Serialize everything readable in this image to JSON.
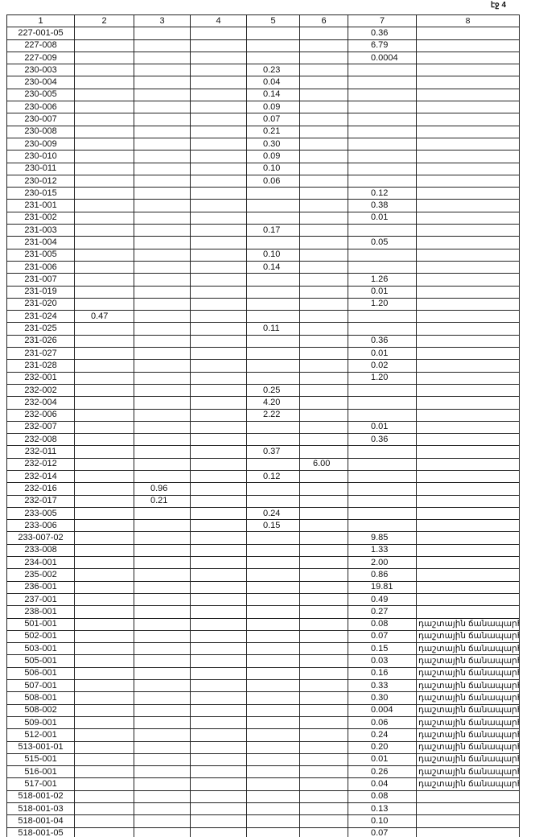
{
  "page_label": "էջ 4",
  "table": {
    "header": [
      "1",
      "2",
      "3",
      "4",
      "5",
      "6",
      "7",
      "8"
    ],
    "rows": [
      {
        "1": "227-001-05",
        "7": "0.36"
      },
      {
        "1": "227-008",
        "7": "6.79"
      },
      {
        "1": "227-009",
        "7": "0.0004"
      },
      {
        "1": "230-003",
        "5": "0.23"
      },
      {
        "1": "230-004",
        "5": "0.04"
      },
      {
        "1": "230-005",
        "5": "0.14"
      },
      {
        "1": "230-006",
        "5": "0.09"
      },
      {
        "1": "230-007",
        "5": "0.07"
      },
      {
        "1": "230-008",
        "5": "0.21"
      },
      {
        "1": "230-009",
        "5": "0.30"
      },
      {
        "1": "230-010",
        "5": "0.09"
      },
      {
        "1": "230-011",
        "5": "0.10"
      },
      {
        "1": "230-012",
        "5": "0.06"
      },
      {
        "1": "230-015",
        "7": "0.12"
      },
      {
        "1": "231-001",
        "7": "0.38"
      },
      {
        "1": "231-002",
        "7": "0.01"
      },
      {
        "1": "231-003",
        "5": "0.17"
      },
      {
        "1": "231-004",
        "7": "0.05"
      },
      {
        "1": "231-005",
        "5": "0.10"
      },
      {
        "1": "231-006",
        "5": "0.14"
      },
      {
        "1": "231-007",
        "7": "1.26"
      },
      {
        "1": "231-019",
        "7": "0.01"
      },
      {
        "1": "231-020",
        "7": "1.20"
      },
      {
        "1": "231-024",
        "2": "0.47"
      },
      {
        "1": "231-025",
        "5": "0.11"
      },
      {
        "1": "231-026",
        "7": "0.36"
      },
      {
        "1": "231-027",
        "7": "0.01"
      },
      {
        "1": "231-028",
        "7": "0.02"
      },
      {
        "1": "232-001",
        "7": "1.20"
      },
      {
        "1": "232-002",
        "5": "0.25"
      },
      {
        "1": "232-004",
        "5": "4.20"
      },
      {
        "1": "232-006",
        "5": "2.22"
      },
      {
        "1": "232-007",
        "7": "0.01"
      },
      {
        "1": "232-008",
        "7": "0.36"
      },
      {
        "1": "232-011",
        "5": "0.37"
      },
      {
        "1": "232-012",
        "6": "6.00"
      },
      {
        "1": "232-014",
        "5": "0.12"
      },
      {
        "1": "232-016",
        "3": "0.96"
      },
      {
        "1": "232-017",
        "3": "0.21"
      },
      {
        "1": "233-005",
        "5": "0.24"
      },
      {
        "1": "233-006",
        "5": "0.15"
      },
      {
        "1": "233-007-02",
        "7": "9.85"
      },
      {
        "1": "233-008",
        "7": "1.33"
      },
      {
        "1": "234-001",
        "7": "2.00"
      },
      {
        "1": "235-002",
        "7": "0.86"
      },
      {
        "1": "236-001",
        "7": "19.81"
      },
      {
        "1": "237-001",
        "7": "0.49"
      },
      {
        "1": "238-001",
        "7": "0.27"
      },
      {
        "1": "501-001",
        "7": "0.08",
        "8": "դաշտային ճանապարհ"
      },
      {
        "1": "502-001",
        "7": "0.07",
        "8": "դաշտային ճանապարհ"
      },
      {
        "1": "503-001",
        "7": "0.15",
        "8": "դաշտային ճանապարհ"
      },
      {
        "1": "505-001",
        "7": "0.03",
        "8": "դաշտային ճանապարհ"
      },
      {
        "1": "506-001",
        "7": "0.16",
        "8": "դաշտային ճանապարհ"
      },
      {
        "1": "507-001",
        "7": "0.33",
        "8": "դաշտային ճանապարհ"
      },
      {
        "1": "508-001",
        "7": "0.30",
        "8": "դաշտային ճանապարհ"
      },
      {
        "1": "508-002",
        "7": "0.004",
        "8": "դաշտային ճանապարհ"
      },
      {
        "1": "509-001",
        "7": "0.06",
        "8": "դաշտային ճանապարհ"
      },
      {
        "1": "512-001",
        "7": "0.24",
        "8": "դաշտային ճանապարհ"
      },
      {
        "1": "513-001-01",
        "7": "0.20",
        "8": "դաշտային ճանապարհ"
      },
      {
        "1": "515-001",
        "7": "0.01",
        "8": "դաշտային ճանապարհ"
      },
      {
        "1": "516-001",
        "7": "0.26",
        "8": "դաշտային ճանապարհ"
      },
      {
        "1": "517-001",
        "7": "0.04",
        "8": "դաշտային ճանապարհ"
      },
      {
        "1": "518-001-02",
        "7": "0.08"
      },
      {
        "1": "518-001-03",
        "7": "0.13"
      },
      {
        "1": "518-001-04",
        "7": "0.10"
      },
      {
        "1": "518-001-05",
        "7": "0.07"
      }
    ]
  }
}
